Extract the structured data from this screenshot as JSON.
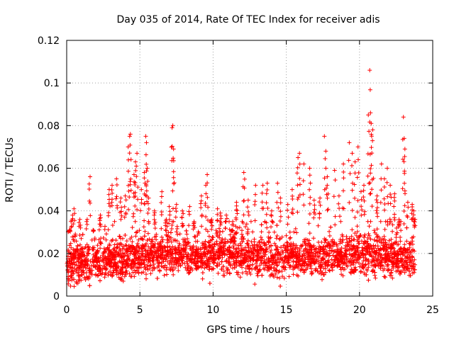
{
  "chart_data": {
    "type": "scatter",
    "title": "Day 035 of 2014, Rate Of TEC Index for receiver adis",
    "xlabel": "GPS time / hours",
    "ylabel": "ROTI / TECUs",
    "xlim": [
      0,
      25
    ],
    "ylim": [
      0,
      0.12
    ],
    "x_ticks": [
      0,
      5,
      10,
      15,
      20,
      25
    ],
    "x_tick_labels": [
      "0",
      "5",
      "10",
      "15",
      "20",
      "25"
    ],
    "y_ticks": [
      0,
      0.02,
      0.04,
      0.06,
      0.08,
      0.1,
      0.12
    ],
    "y_tick_labels": [
      "0",
      "0.02",
      "0.04",
      "0.06",
      "0.08",
      "0.1",
      "0.12"
    ],
    "grid": true,
    "marker": "+",
    "colors": {
      "points": "#ff0000",
      "grid": "#a0a0a0",
      "axis": "#000000"
    },
    "series": [
      {
        "name": "ROTI",
        "points": [
          [
            0.2,
            0.031
          ],
          [
            0.4,
            0.038
          ],
          [
            0.5,
            0.041
          ],
          [
            0.9,
            0.036
          ],
          [
            1.4,
            0.036
          ],
          [
            1.6,
            0.056
          ],
          [
            1.8,
            0.031
          ],
          [
            2.3,
            0.038
          ],
          [
            2.9,
            0.05
          ],
          [
            3.1,
            0.052
          ],
          [
            3.4,
            0.055
          ],
          [
            3.7,
            0.046
          ],
          [
            4.0,
            0.047
          ],
          [
            4.2,
            0.07
          ],
          [
            4.3,
            0.075
          ],
          [
            4.35,
            0.076
          ],
          [
            4.6,
            0.057
          ],
          [
            4.7,
            0.063
          ],
          [
            4.8,
            0.067
          ],
          [
            5.1,
            0.05
          ],
          [
            5.3,
            0.058
          ],
          [
            5.4,
            0.075
          ],
          [
            5.45,
            0.072
          ],
          [
            5.5,
            0.06
          ],
          [
            5.6,
            0.046
          ],
          [
            6.0,
            0.04
          ],
          [
            6.5,
            0.049
          ],
          [
            6.8,
            0.036
          ],
          [
            7.0,
            0.042
          ],
          [
            7.2,
            0.079
          ],
          [
            7.25,
            0.08
          ],
          [
            7.3,
            0.069
          ],
          [
            7.5,
            0.043
          ],
          [
            7.9,
            0.04
          ],
          [
            8.4,
            0.042
          ],
          [
            8.7,
            0.035
          ],
          [
            9.2,
            0.047
          ],
          [
            9.5,
            0.052
          ],
          [
            9.6,
            0.057
          ],
          [
            9.9,
            0.036
          ],
          [
            10.3,
            0.041
          ],
          [
            10.5,
            0.039
          ],
          [
            10.9,
            0.038
          ],
          [
            11.3,
            0.031
          ],
          [
            11.6,
            0.044
          ],
          [
            12.1,
            0.058
          ],
          [
            12.4,
            0.045
          ],
          [
            12.9,
            0.052
          ],
          [
            13.4,
            0.052
          ],
          [
            13.7,
            0.053
          ],
          [
            14.0,
            0.04
          ],
          [
            14.4,
            0.053
          ],
          [
            14.6,
            0.046
          ],
          [
            15.1,
            0.043
          ],
          [
            15.4,
            0.05
          ],
          [
            15.8,
            0.065
          ],
          [
            15.9,
            0.067
          ],
          [
            16.2,
            0.062
          ],
          [
            16.6,
            0.06
          ],
          [
            16.9,
            0.045
          ],
          [
            17.3,
            0.046
          ],
          [
            17.6,
            0.075
          ],
          [
            17.7,
            0.068
          ],
          [
            17.8,
            0.056
          ],
          [
            18.3,
            0.059
          ],
          [
            18.6,
            0.047
          ],
          [
            18.9,
            0.062
          ],
          [
            19.3,
            0.072
          ],
          [
            19.5,
            0.067
          ],
          [
            19.7,
            0.063
          ],
          [
            19.9,
            0.07
          ],
          [
            20.1,
            0.049
          ],
          [
            20.3,
            0.052
          ],
          [
            20.6,
            0.085
          ],
          [
            20.7,
            0.106
          ],
          [
            20.75,
            0.086
          ],
          [
            20.8,
            0.081
          ],
          [
            20.9,
            0.078
          ],
          [
            21.2,
            0.047
          ],
          [
            21.5,
            0.062
          ],
          [
            21.7,
            0.055
          ],
          [
            21.9,
            0.06
          ],
          [
            22.1,
            0.052
          ],
          [
            22.4,
            0.048
          ],
          [
            22.7,
            0.036
          ],
          [
            23.0,
            0.084
          ],
          [
            23.05,
            0.074
          ],
          [
            23.1,
            0.069
          ],
          [
            23.3,
            0.044
          ],
          [
            23.6,
            0.043
          ],
          [
            23.7,
            0.04
          ],
          [
            23.8,
            0.036
          ]
        ],
        "band": {
          "x_range": [
            0,
            23.8
          ],
          "baseline": [
            [
              0,
              0.015
            ],
            [
              2,
              0.016
            ],
            [
              4,
              0.017
            ],
            [
              6,
              0.019
            ],
            [
              8,
              0.019
            ],
            [
              10,
              0.02
            ],
            [
              12,
              0.019
            ],
            [
              14,
              0.018
            ],
            [
              16,
              0.018
            ],
            [
              18,
              0.018
            ],
            [
              20,
              0.019
            ],
            [
              22,
              0.019
            ],
            [
              23.8,
              0.017
            ]
          ],
          "spread": 0.008,
          "min": 0.002,
          "max": 0.035
        }
      }
    ]
  }
}
